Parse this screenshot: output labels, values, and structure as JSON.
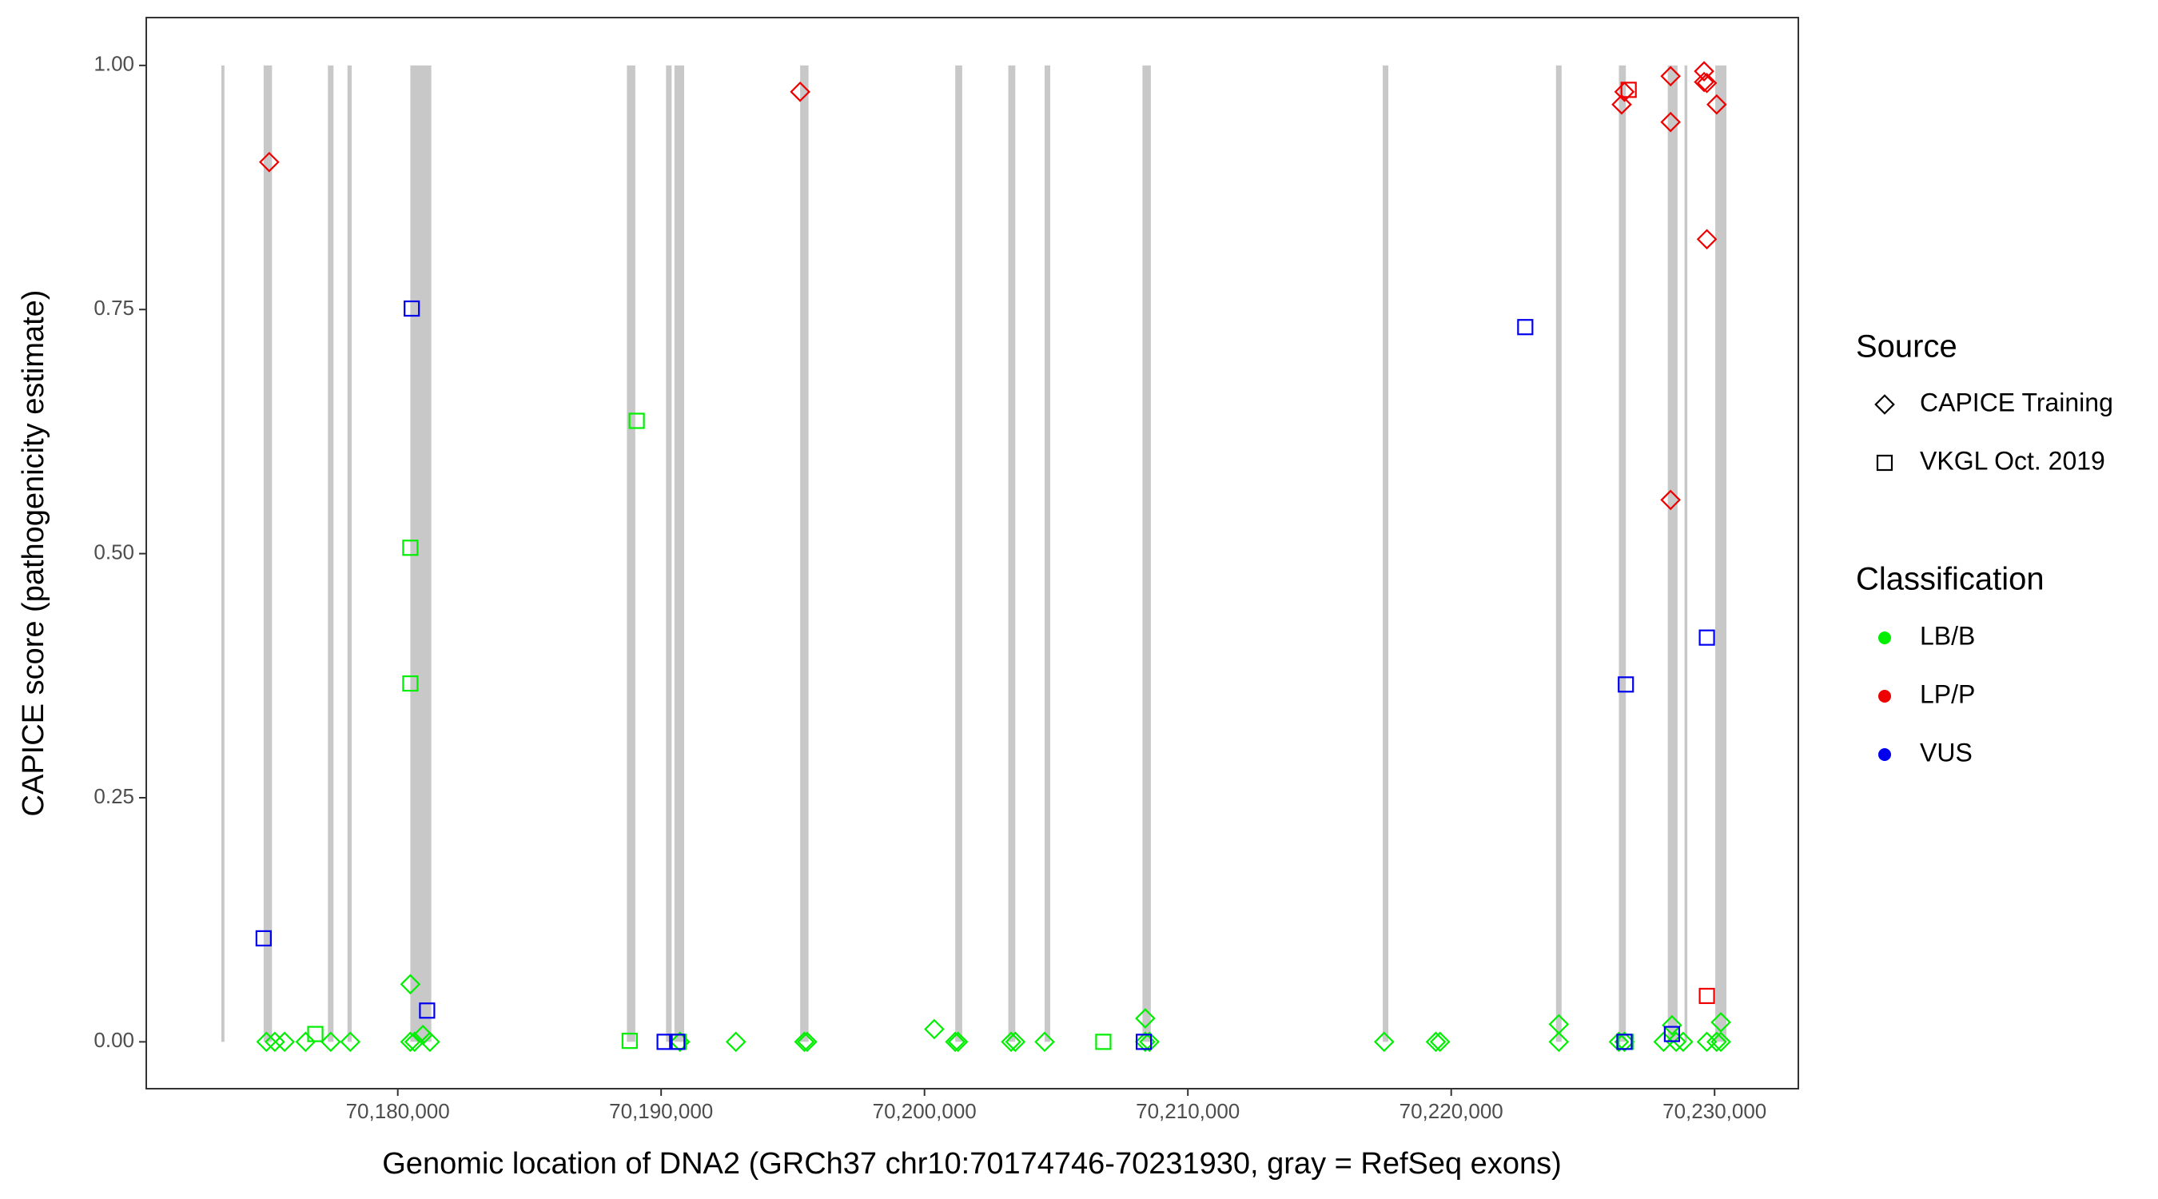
{
  "chart_data": {
    "type": "scatter",
    "x_label": "Genomic location of DNA2 (GRCh37 chr10:70174746-70231930, gray = RefSeq exons)",
    "y_label": "CAPICE score (pathogenicity estimate)",
    "xlim": [
      70170450,
      70233180
    ],
    "ylim": [
      -0.048,
      1.049
    ],
    "xticks": [
      {
        "value": 70180000,
        "label": "70,180,000"
      },
      {
        "value": 70190000,
        "label": "70,190,000"
      },
      {
        "value": 70200000,
        "label": "70,200,000"
      },
      {
        "value": 70210000,
        "label": "70,210,000"
      },
      {
        "value": 70220000,
        "label": "70,220,000"
      },
      {
        "value": 70230000,
        "label": "70,230,000"
      }
    ],
    "yticks": [
      {
        "value": 0,
        "label": "0.00"
      },
      {
        "value": 0.25,
        "label": "0.25"
      },
      {
        "value": 0.5,
        "label": "0.50"
      },
      {
        "value": 0.75,
        "label": "0.75"
      },
      {
        "value": 1,
        "label": "1.00"
      }
    ],
    "exon_color": "#c8c8c8",
    "exon_ylim": [
      0,
      1
    ],
    "exons": [
      [
        70173300,
        70173420
      ],
      [
        70174907,
        70175225
      ],
      [
        70177347,
        70177560
      ],
      [
        70178090,
        70178249
      ],
      [
        70180477,
        70181273
      ],
      [
        70188700,
        70189019
      ],
      [
        70190186,
        70190398
      ],
      [
        70190504,
        70190875
      ],
      [
        70195278,
        70195597
      ],
      [
        70201167,
        70201432
      ],
      [
        70203183,
        70203448
      ],
      [
        70204562,
        70204774
      ],
      [
        70208276,
        70208594
      ],
      [
        70217400,
        70217612
      ],
      [
        70223978,
        70224191
      ],
      [
        70226366,
        70226631
      ],
      [
        70228222,
        70228594
      ],
      [
        70228859,
        70228965
      ],
      [
        70230026,
        70230451
      ]
    ],
    "sources": {
      "title": "Source",
      "items": [
        {
          "name": "CAPICE Training",
          "shape": "diamond"
        },
        {
          "name": "VKGL Oct. 2019",
          "shape": "square"
        }
      ]
    },
    "classifications": {
      "title": "Classification",
      "items": [
        {
          "name": "LB/B",
          "color": "#00ee00"
        },
        {
          "name": "LP/P",
          "color": "#ee0000"
        },
        {
          "name": "VUS",
          "color": "#0000ee"
        }
      ]
    },
    "series": [
      {
        "source": 0,
        "classification": 0,
        "x": [
          70175013,
          70175332,
          70175703,
          70176499,
          70177454,
          70178196,
          70180477,
          70180477,
          70180637,
          70180955,
          70181220,
          70190716,
          70192838,
          70195438,
          70195544,
          70200371,
          70201167,
          70201273,
          70203289,
          70203448,
          70204562,
          70208382,
          70208382,
          70208541,
          70217453,
          70219416,
          70219575,
          70224085,
          70224085,
          70226366,
          70226578,
          70228063,
          70228382,
          70228541,
          70228806,
          70229708,
          70230079,
          70230238,
          70230238
        ],
        "values": [
          0,
          0,
          0,
          0,
          0,
          0,
          0.059,
          0,
          0,
          0.007,
          0,
          0,
          0,
          0,
          0,
          0.013,
          0,
          0,
          0,
          0,
          0,
          0.024,
          0,
          0,
          0,
          0,
          0,
          0.018,
          0,
          0,
          0,
          0,
          0.017,
          0,
          0,
          0,
          0,
          0.02,
          0
        ]
      },
      {
        "source": 0,
        "classification": 1,
        "x": [
          70175119,
          70195278,
          70226472,
          70226578,
          70228329,
          70228329,
          70228329,
          70229602,
          70229602,
          70229708,
          70230079,
          70229708
        ],
        "values": [
          0.901,
          0.973,
          0.96,
          0.973,
          0.989,
          0.942,
          0.555,
          0.994,
          0.983,
          0.982,
          0.96,
          0.822
        ]
      },
      {
        "source": 1,
        "classification": 0,
        "x": [
          70176870,
          70180477,
          70180477,
          70188806,
          70189072,
          70190663,
          70206790,
          70226631
        ],
        "values": [
          0.008,
          0.506,
          0.367,
          0.001,
          0.636,
          0,
          0,
          0
        ]
      },
      {
        "source": 1,
        "classification": 1,
        "x": [
          70226737,
          70229708
        ],
        "values": [
          0.975,
          0.047
        ]
      },
      {
        "source": 1,
        "classification": 2,
        "x": [
          70174907,
          70180531,
          70181114,
          70190133,
          70190610,
          70208329,
          70222811,
          70226631,
          70226578,
          70228382,
          70229708
        ],
        "values": [
          0.106,
          0.751,
          0.032,
          0,
          0,
          0,
          0.732,
          0.366,
          0,
          0.008,
          0.414
        ]
      }
    ]
  }
}
